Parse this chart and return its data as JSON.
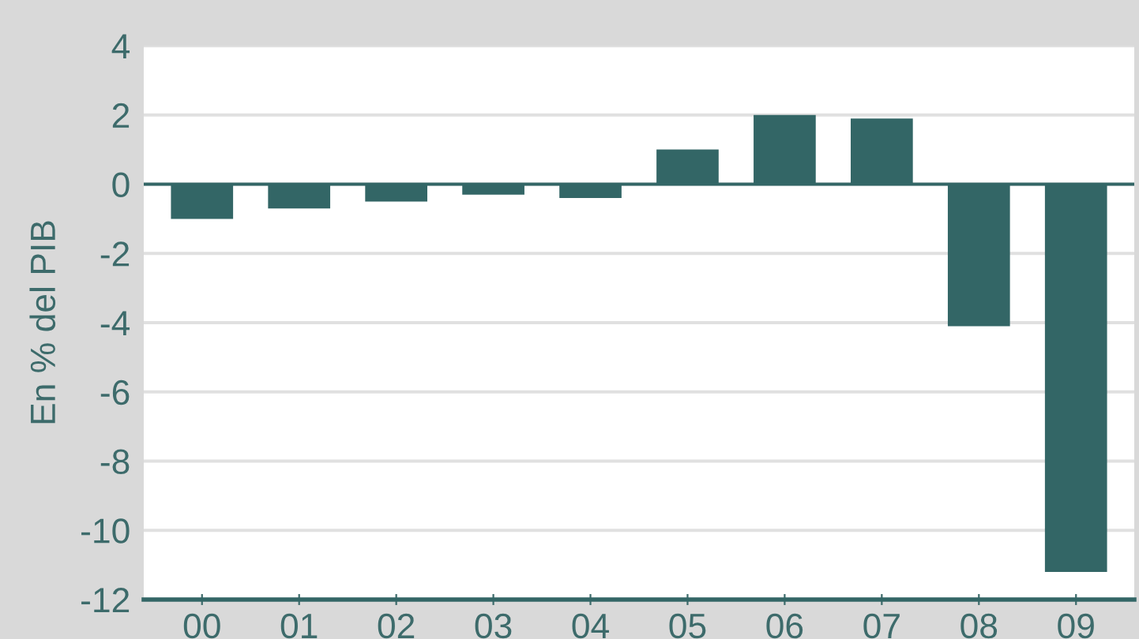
{
  "chart_data": {
    "type": "bar",
    "ylabel": "En % del PIB",
    "categories": [
      "00",
      "01",
      "02",
      "03",
      "04",
      "05",
      "06",
      "07",
      "08",
      "09"
    ],
    "values": [
      -1.0,
      -0.7,
      -0.5,
      -0.3,
      -0.4,
      1.0,
      2.0,
      1.9,
      -4.1,
      -11.2
    ],
    "color": "#336666",
    "ylim": [
      -12,
      4
    ],
    "yticks": [
      -12,
      -10,
      -8,
      -6,
      -4,
      -2,
      0,
      2,
      4
    ],
    "grid": "y",
    "ref_lines": [
      {
        "axis": "y",
        "value": 0,
        "color": "#336666"
      }
    ]
  }
}
